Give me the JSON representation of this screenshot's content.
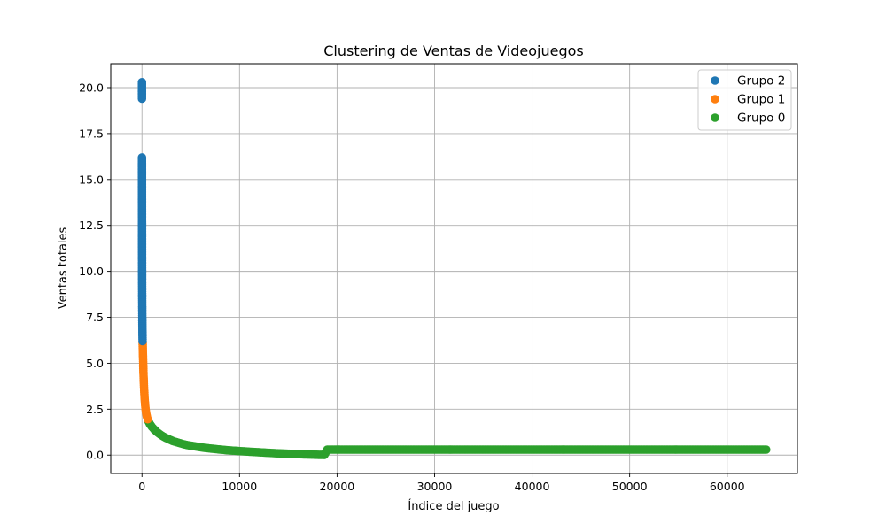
{
  "chart_data": {
    "type": "scatter",
    "title": "Clustering de Ventas de Videojuegos",
    "xlabel": "Índice del juego",
    "ylabel": "Ventas totales",
    "xlim": [
      -3200,
      67200
    ],
    "ylim": [
      -1.0,
      21.3
    ],
    "x_ticks": [
      0,
      10000,
      20000,
      30000,
      40000,
      50000,
      60000
    ],
    "y_ticks": [
      0.0,
      2.5,
      5.0,
      7.5,
      10.0,
      12.5,
      15.0,
      17.5,
      20.0
    ],
    "x_tick_labels": [
      "0",
      "10000",
      "20000",
      "30000",
      "40000",
      "50000",
      "60000"
    ],
    "y_tick_labels": [
      "0.0",
      "2.5",
      "5.0",
      "7.5",
      "10.0",
      "12.5",
      "15.0",
      "17.5",
      "20.0"
    ],
    "grid": true,
    "legend_position": "top-right",
    "series": [
      {
        "name": "Grupo 2",
        "color": "#1f77b4",
        "points": [
          [
            0,
            20.3
          ],
          [
            1,
            19.4
          ],
          [
            2,
            16.2
          ],
          [
            3,
            15.9
          ],
          [
            4,
            15.1
          ],
          [
            5,
            14.8
          ],
          [
            6,
            13.9
          ],
          [
            7,
            13.6
          ],
          [
            8,
            13.3
          ],
          [
            9,
            13.0
          ],
          [
            10,
            12.7
          ],
          [
            11,
            11.8
          ],
          [
            12,
            11.0
          ],
          [
            13,
            10.7
          ],
          [
            14,
            10.5
          ],
          [
            15,
            10.2
          ],
          [
            16,
            9.9
          ],
          [
            17,
            9.4
          ],
          [
            18,
            9.2
          ],
          [
            19,
            9.0
          ],
          [
            20,
            8.8
          ],
          [
            22,
            8.6
          ],
          [
            24,
            8.4
          ],
          [
            26,
            8.2
          ],
          [
            28,
            8.0
          ],
          [
            30,
            7.8
          ],
          [
            33,
            7.6
          ],
          [
            36,
            7.4
          ],
          [
            40,
            7.2
          ],
          [
            44,
            7.0
          ],
          [
            48,
            6.8
          ],
          [
            53,
            6.6
          ],
          [
            58,
            6.4
          ],
          [
            64,
            6.2
          ]
        ]
      },
      {
        "name": "Grupo 1",
        "color": "#ff7f0e",
        "points": [
          [
            70,
            6.1
          ],
          [
            80,
            5.9
          ],
          [
            90,
            5.7
          ],
          [
            100,
            5.5
          ],
          [
            110,
            5.3
          ],
          [
            120,
            5.1
          ],
          [
            130,
            4.9
          ],
          [
            140,
            4.7
          ],
          [
            150,
            4.5
          ],
          [
            165,
            4.3
          ],
          [
            180,
            4.1
          ],
          [
            195,
            3.9
          ],
          [
            210,
            3.7
          ],
          [
            230,
            3.5
          ],
          [
            250,
            3.3
          ],
          [
            270,
            3.1
          ],
          [
            300,
            2.9
          ],
          [
            330,
            2.7
          ],
          [
            370,
            2.5
          ],
          [
            410,
            2.35
          ],
          [
            460,
            2.2
          ],
          [
            520,
            2.05
          ],
          [
            590,
            1.95
          ]
        ]
      },
      {
        "name": "Grupo 0",
        "color": "#2ca02c",
        "points": [
          [
            650,
            1.85
          ],
          [
            800,
            1.7
          ],
          [
            1000,
            1.55
          ],
          [
            1250,
            1.4
          ],
          [
            1500,
            1.27
          ],
          [
            1800,
            1.15
          ],
          [
            2100,
            1.04
          ],
          [
            2400,
            0.95
          ],
          [
            2800,
            0.85
          ],
          [
            3200,
            0.76
          ],
          [
            3700,
            0.68
          ],
          [
            4200,
            0.6
          ],
          [
            4800,
            0.53
          ],
          [
            5500,
            0.47
          ],
          [
            6200,
            0.41
          ],
          [
            7000,
            0.36
          ],
          [
            7900,
            0.31
          ],
          [
            8900,
            0.26
          ],
          [
            10000,
            0.22
          ],
          [
            11200,
            0.18
          ],
          [
            12500,
            0.14
          ],
          [
            13800,
            0.1
          ],
          [
            15200,
            0.07
          ],
          [
            16600,
            0.04
          ],
          [
            17800,
            0.02
          ],
          [
            18700,
            0.01
          ],
          [
            19000,
            0.3
          ],
          [
            21000,
            0.3
          ],
          [
            23500,
            0.3
          ],
          [
            26000,
            0.3
          ],
          [
            28500,
            0.3
          ],
          [
            31000,
            0.3
          ],
          [
            33500,
            0.3
          ],
          [
            36000,
            0.3
          ],
          [
            38500,
            0.3
          ],
          [
            41000,
            0.3
          ],
          [
            43500,
            0.3
          ],
          [
            46000,
            0.3
          ],
          [
            48500,
            0.3
          ],
          [
            51000,
            0.3
          ],
          [
            53500,
            0.3
          ],
          [
            56000,
            0.3
          ],
          [
            58500,
            0.3
          ],
          [
            61000,
            0.3
          ],
          [
            64000,
            0.3
          ]
        ]
      }
    ]
  }
}
